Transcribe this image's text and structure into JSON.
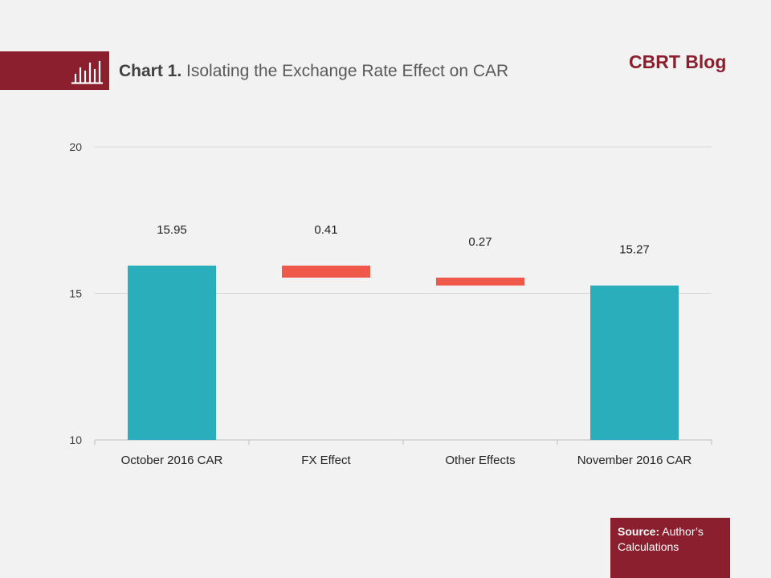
{
  "header": {
    "chart_label": "Chart 1.",
    "chart_title": "Isolating the Exchange Rate Effect on CAR",
    "blog_title": "CBRT Blog",
    "icon": "bar-chart-icon"
  },
  "source": {
    "label": "Source:",
    "text": "Author’s Calculations"
  },
  "colors": {
    "brand": "#8b1f2e",
    "total_bar": "#2aaebc",
    "change_bar": "#f0584a",
    "gridline": "#d9d9d9",
    "text": "#404040"
  },
  "chart_data": {
    "type": "bar",
    "subtype": "waterfall",
    "categories": [
      "October 2016 CAR",
      "FX Effect",
      "Other Effects",
      "November 2016 CAR"
    ],
    "values": [
      15.95,
      -0.41,
      -0.27,
      15.27
    ],
    "value_labels": [
      "15.95",
      "0.41",
      "0.27",
      "15.27"
    ],
    "bar_kinds": [
      "total",
      "change",
      "change",
      "total"
    ],
    "ylim": [
      10,
      20
    ],
    "yticks": [
      10,
      15,
      20
    ],
    "grid": true,
    "legend": "none"
  }
}
